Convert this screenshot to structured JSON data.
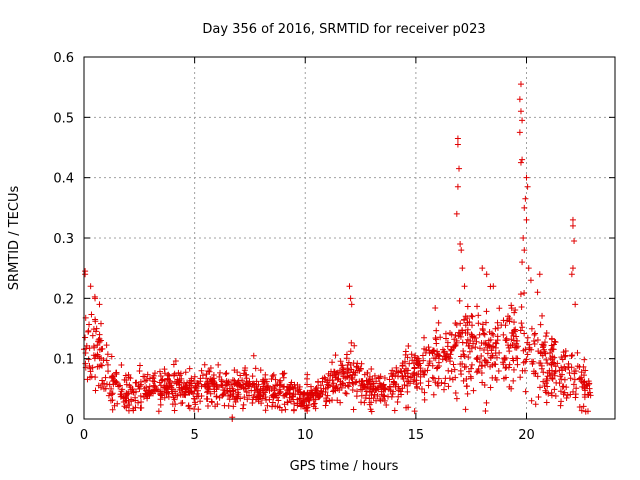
{
  "chart_data": {
    "type": "scatter",
    "title": "Day 356 of 2016, SRMTID for receiver p023",
    "xlabel": "GPS time / hours",
    "ylabel": "SRMTID / TECUs",
    "xlim": [
      0,
      24
    ],
    "ylim": [
      0,
      0.6
    ],
    "x_ticks": [
      0,
      5,
      10,
      15,
      20
    ],
    "x_tick_labels": [
      "0",
      "5",
      "10",
      "15",
      "20"
    ],
    "y_ticks": [
      0,
      0.1,
      0.2,
      0.3,
      0.4,
      0.5,
      0.6
    ],
    "y_tick_labels": [
      "0",
      "0.1",
      "0.2",
      "0.3",
      "0.4",
      "0.5",
      "0.6"
    ],
    "grid": true,
    "marker": "+",
    "color": "#e00000",
    "series": [
      {
        "name": "SRMTID",
        "profile": [
          [
            0.0,
            0.1,
            0.04
          ],
          [
            0.3,
            0.13,
            0.05
          ],
          [
            0.6,
            0.12,
            0.04
          ],
          [
            0.9,
            0.09,
            0.03
          ],
          [
            1.2,
            0.06,
            0.02
          ],
          [
            1.6,
            0.05,
            0.02
          ],
          [
            2.0,
            0.04,
            0.015
          ],
          [
            2.5,
            0.045,
            0.015
          ],
          [
            3.0,
            0.05,
            0.015
          ],
          [
            3.5,
            0.05,
            0.015
          ],
          [
            4.0,
            0.055,
            0.015
          ],
          [
            4.5,
            0.05,
            0.015
          ],
          [
            5.0,
            0.05,
            0.015
          ],
          [
            5.5,
            0.055,
            0.015
          ],
          [
            6.0,
            0.05,
            0.015
          ],
          [
            6.5,
            0.05,
            0.015
          ],
          [
            7.0,
            0.05,
            0.015
          ],
          [
            7.5,
            0.055,
            0.02
          ],
          [
            8.0,
            0.045,
            0.015
          ],
          [
            8.5,
            0.05,
            0.015
          ],
          [
            9.0,
            0.05,
            0.015
          ],
          [
            9.5,
            0.04,
            0.012
          ],
          [
            10.0,
            0.035,
            0.01
          ],
          [
            10.5,
            0.045,
            0.015
          ],
          [
            11.0,
            0.05,
            0.015
          ],
          [
            11.5,
            0.065,
            0.02
          ],
          [
            12.0,
            0.08,
            0.025
          ],
          [
            12.5,
            0.06,
            0.02
          ],
          [
            13.0,
            0.045,
            0.015
          ],
          [
            13.5,
            0.05,
            0.015
          ],
          [
            14.0,
            0.06,
            0.02
          ],
          [
            14.5,
            0.07,
            0.02
          ],
          [
            15.0,
            0.085,
            0.025
          ],
          [
            15.5,
            0.09,
            0.025
          ],
          [
            16.0,
            0.1,
            0.03
          ],
          [
            16.5,
            0.11,
            0.03
          ],
          [
            17.0,
            0.12,
            0.035
          ],
          [
            17.5,
            0.12,
            0.04
          ],
          [
            18.0,
            0.12,
            0.04
          ],
          [
            18.5,
            0.11,
            0.035
          ],
          [
            19.0,
            0.11,
            0.035
          ],
          [
            19.5,
            0.11,
            0.04
          ],
          [
            20.0,
            0.11,
            0.04
          ],
          [
            20.5,
            0.1,
            0.035
          ],
          [
            21.0,
            0.09,
            0.03
          ],
          [
            21.5,
            0.08,
            0.025
          ],
          [
            22.0,
            0.08,
            0.025
          ],
          [
            22.5,
            0.06,
            0.02
          ],
          [
            22.9,
            0.05,
            0.015
          ]
        ],
        "x_start": 0.0,
        "x_end": 22.9,
        "n_points": 1500,
        "peaks": [
          [
            0.05,
            0.245
          ],
          [
            0.05,
            0.24
          ],
          [
            0.3,
            0.22
          ],
          [
            0.5,
            0.2
          ],
          [
            0.7,
            0.19
          ],
          [
            12.0,
            0.22
          ],
          [
            12.05,
            0.2
          ],
          [
            12.1,
            0.19
          ],
          [
            16.9,
            0.465
          ],
          [
            16.9,
            0.455
          ],
          [
            16.95,
            0.415
          ],
          [
            16.9,
            0.385
          ],
          [
            16.85,
            0.34
          ],
          [
            17.0,
            0.29
          ],
          [
            17.05,
            0.28
          ],
          [
            17.1,
            0.25
          ],
          [
            17.2,
            0.22
          ],
          [
            18.0,
            0.25
          ],
          [
            18.2,
            0.24
          ],
          [
            18.5,
            0.22
          ],
          [
            19.75,
            0.555
          ],
          [
            19.7,
            0.53
          ],
          [
            19.75,
            0.51
          ],
          [
            19.8,
            0.495
          ],
          [
            19.7,
            0.475
          ],
          [
            19.75,
            0.425
          ],
          [
            19.8,
            0.43
          ],
          [
            20.0,
            0.4
          ],
          [
            20.05,
            0.385
          ],
          [
            19.95,
            0.365
          ],
          [
            19.9,
            0.35
          ],
          [
            20.0,
            0.33
          ],
          [
            19.85,
            0.3
          ],
          [
            19.9,
            0.28
          ],
          [
            19.8,
            0.26
          ],
          [
            20.1,
            0.25
          ],
          [
            20.2,
            0.23
          ],
          [
            20.6,
            0.24
          ],
          [
            20.5,
            0.21
          ],
          [
            22.1,
            0.33
          ],
          [
            22.1,
            0.32
          ],
          [
            22.15,
            0.295
          ],
          [
            22.1,
            0.25
          ],
          [
            22.05,
            0.24
          ],
          [
            22.2,
            0.19
          ],
          [
            6.7,
            0.0
          ],
          [
            6.7,
            0.003
          ]
        ]
      }
    ]
  }
}
